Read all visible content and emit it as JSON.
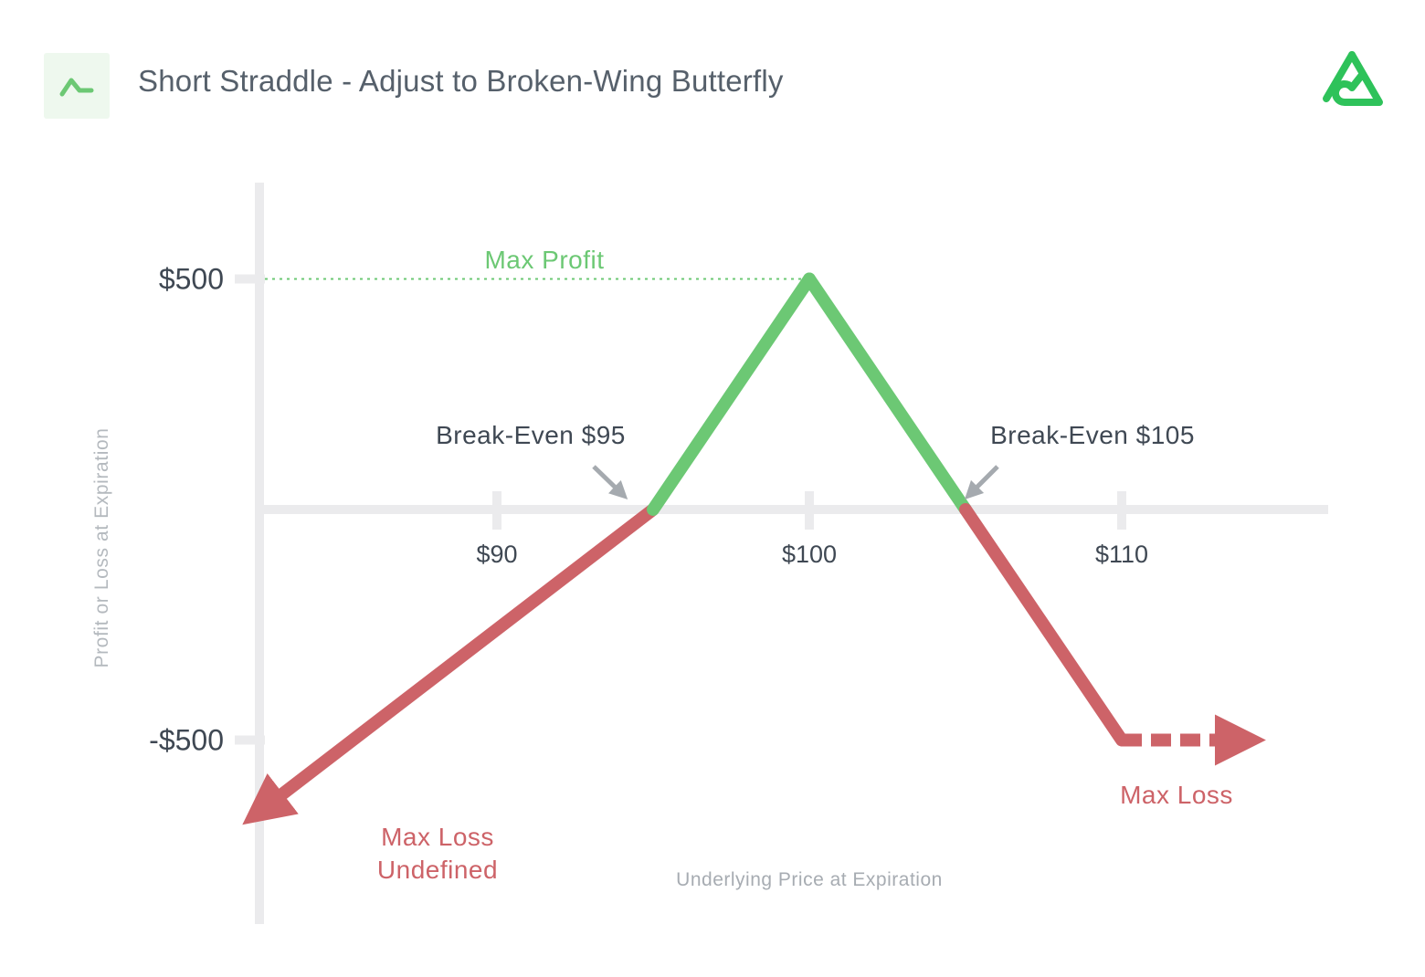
{
  "header": {
    "title": "Short Straddle - Adjust to Broken-Wing Butterfly",
    "badge_icon": "chart-line-icon",
    "brand_icon": "brand-logo-icon"
  },
  "colors": {
    "profit": "#6cc874",
    "loss": "#cd6368",
    "axis": "#ebebed",
    "text": "#3f4853",
    "annotation_arrow": "#a5aaaf",
    "brand": "#2ec25a"
  },
  "chart_data": {
    "type": "line",
    "title": "",
    "xlabel": "Underlying Price at Expiration",
    "ylabel": "Profit or Loss at Expiration",
    "x_ticks": [
      {
        "value": 90,
        "label": "$90"
      },
      {
        "value": 100,
        "label": "$100"
      },
      {
        "value": 110,
        "label": "$110"
      }
    ],
    "y_ticks": [
      {
        "value": 500,
        "label": "$500"
      },
      {
        "value": -500,
        "label": "-$500"
      }
    ],
    "series": [
      {
        "x": [
          82.5,
          95,
          100,
          105,
          110,
          114.5
        ],
        "y": [
          -650,
          0,
          500,
          0,
          -500,
          -500
        ]
      }
    ],
    "annotations": {
      "max_profit": {
        "label": "Max Profit",
        "x": 100,
        "y": 500
      },
      "break_even_low": {
        "label": "Break-Even $95",
        "x": 95,
        "y": 0
      },
      "break_even_high": {
        "label": "Break-Even $105",
        "x": 105,
        "y": 0
      },
      "max_loss_left": {
        "line1": "Max Loss",
        "line2": "Undefined"
      },
      "max_loss_right": {
        "label": "Max Loss",
        "y": -500
      }
    },
    "grid": false,
    "legend": "none"
  }
}
